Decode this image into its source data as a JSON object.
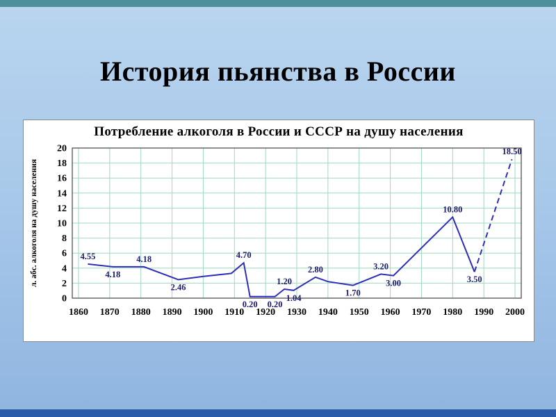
{
  "slide": {
    "title": "История пьянства в России"
  },
  "theme": {
    "top_bar_color": "#4e8f9c",
    "bottom_bar_color": "#2a5caa",
    "background_top": "#b9d5ef",
    "background_bottom": "#8fb5e0",
    "panel_background": "#ffffff"
  },
  "chart_data": {
    "type": "line",
    "title": "Потребление алкоголя в России и СССР на душу населения",
    "xlabel": "",
    "ylabel": "л. абс. алкоголя на душу населения",
    "xlim": [
      1858,
      2002
    ],
    "ylim": [
      0,
      20
    ],
    "x_ticks": [
      1860,
      1870,
      1880,
      1890,
      1900,
      1910,
      1920,
      1930,
      1940,
      1950,
      1960,
      1970,
      1980,
      1990,
      2000
    ],
    "y_ticks": [
      0,
      2,
      4,
      6,
      8,
      10,
      12,
      14,
      16,
      18,
      20
    ],
    "grid": true,
    "legend": false,
    "line_color": "#2d2db8",
    "grid_color": "#9fd8c0",
    "label_color": "#1b1b6f",
    "axis_color": "#444444",
    "series": [
      {
        "name": "alcohol-consumption",
        "style": "solid",
        "points": [
          {
            "x": 1863,
            "y": 4.55,
            "label": "4.55",
            "label_pos": "above"
          },
          {
            "x": 1871,
            "y": 4.18,
            "label": "4.18",
            "label_pos": "below"
          },
          {
            "x": 1881,
            "y": 4.18,
            "label": "4.18",
            "label_pos": "above"
          },
          {
            "x": 1892,
            "y": 2.46,
            "label": "2.46",
            "label_pos": "below"
          },
          {
            "x": 1900,
            "y": 2.9
          },
          {
            "x": 1909,
            "y": 3.3
          },
          {
            "x": 1913,
            "y": 4.7,
            "label": "4.70",
            "label_pos": "above"
          },
          {
            "x": 1915,
            "y": 0.2,
            "label": "0.20",
            "label_pos": "below"
          },
          {
            "x": 1923,
            "y": 0.2,
            "label": "0.20",
            "label_pos": "below"
          },
          {
            "x": 1926,
            "y": 1.2,
            "label": "1.20",
            "label_pos": "above"
          },
          {
            "x": 1929,
            "y": 1.04,
            "label": "1.04",
            "label_pos": "below"
          },
          {
            "x": 1936,
            "y": 2.8,
            "label": "2.80",
            "label_pos": "above"
          },
          {
            "x": 1940,
            "y": 2.2
          },
          {
            "x": 1948,
            "y": 1.7,
            "label": "1.70",
            "label_pos": "below"
          },
          {
            "x": 1957,
            "y": 3.2,
            "label": "3.20",
            "label_pos": "above"
          },
          {
            "x": 1961,
            "y": 3.0,
            "label": "3.00",
            "label_pos": "below"
          },
          {
            "x": 1980,
            "y": 10.8,
            "label": "10.80",
            "label_pos": "above"
          },
          {
            "x": 1987,
            "y": 3.5,
            "label": "3.50",
            "label_pos": "below"
          }
        ]
      },
      {
        "name": "forecast-dashed",
        "style": "dashed",
        "points": [
          {
            "x": 1987,
            "y": 3.5
          },
          {
            "x": 1999,
            "y": 18.5,
            "label": "18.50",
            "label_pos": "above"
          }
        ]
      }
    ]
  }
}
